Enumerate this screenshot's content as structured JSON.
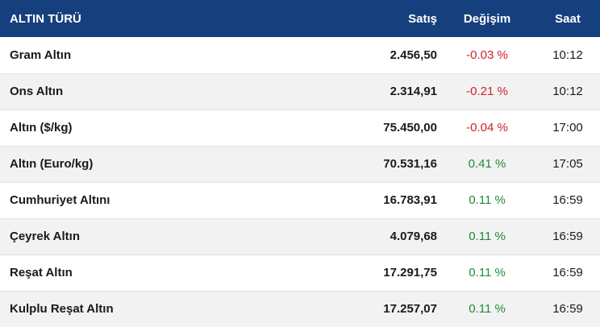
{
  "header": {
    "name": "ALTIN TÜRÜ",
    "sell": "Satış",
    "change": "Değişim",
    "time": "Saat"
  },
  "colors": {
    "header_bg": "#163f7e",
    "negative": "#d0202a",
    "positive": "#1e8a3a"
  },
  "rows": [
    {
      "name": "Gram Altın",
      "sell": "2.456,50",
      "change": "-0.03 %",
      "direction": "neg",
      "time": "10:12"
    },
    {
      "name": "Ons Altın",
      "sell": "2.314,91",
      "change": "-0.21 %",
      "direction": "neg",
      "time": "10:12"
    },
    {
      "name": "Altın ($/kg)",
      "sell": "75.450,00",
      "change": "-0.04 %",
      "direction": "neg",
      "time": "17:00"
    },
    {
      "name": "Altın (Euro/kg)",
      "sell": "70.531,16",
      "change": "0.41 %",
      "direction": "pos",
      "time": "17:05"
    },
    {
      "name": "Cumhuriyet Altını",
      "sell": "16.783,91",
      "change": "0.11 %",
      "direction": "pos",
      "time": "16:59"
    },
    {
      "name": "Çeyrek Altın",
      "sell": "4.079,68",
      "change": "0.11 %",
      "direction": "pos",
      "time": "16:59"
    },
    {
      "name": "Reşat Altın",
      "sell": "17.291,75",
      "change": "0.11 %",
      "direction": "pos",
      "time": "16:59"
    },
    {
      "name": "Kulplu Reşat Altın",
      "sell": "17.257,07",
      "change": "0.11 %",
      "direction": "pos",
      "time": "16:59"
    }
  ]
}
